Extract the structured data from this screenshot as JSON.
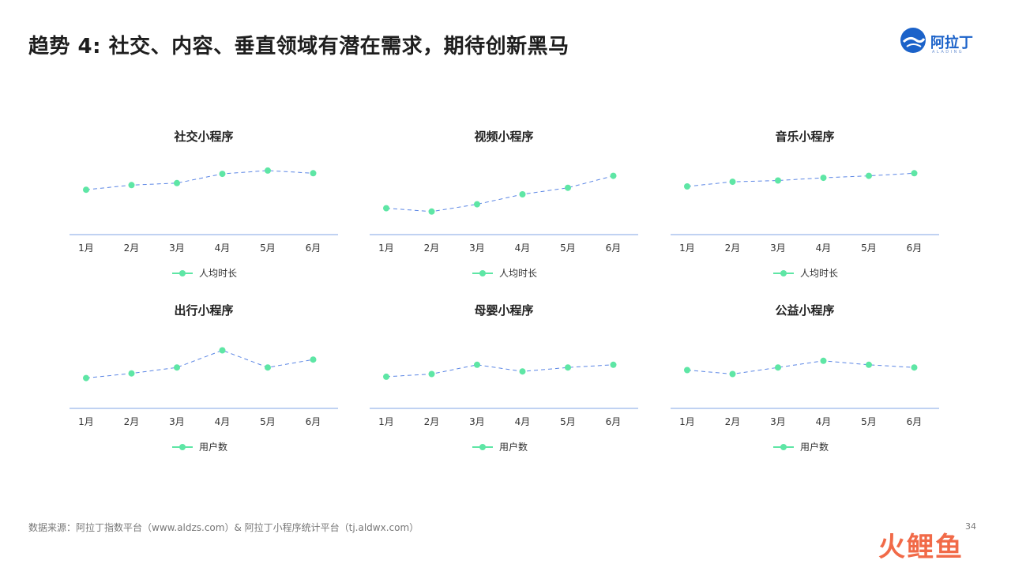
{
  "header": {
    "title": "趋势 4: 社交、内容、垂直领域有潜在需求，期待创新黑马",
    "logo_text": "阿拉丁",
    "logo_sub": "ALADING"
  },
  "footer": {
    "source": "数据来源：阿拉丁指数平台（www.aldzs.com）& 阿拉丁小程序统计平台（tj.aldwx.com）",
    "page_number": "34",
    "watermark": "火鲤鱼"
  },
  "colors": {
    "line": "#5b86e5",
    "marker": "#5ee6a5",
    "axis": "#9ab6ea",
    "text": "#333333"
  },
  "chart_data": [
    {
      "type": "line",
      "title": "社交小程序",
      "categories": [
        "1月",
        "2月",
        "3月",
        "4月",
        "5月",
        "6月"
      ],
      "series": [
        {
          "name": "人均时长",
          "values": [
            68,
            75,
            78,
            92,
            97,
            93
          ]
        }
      ],
      "ylim": [
        0,
        140
      ],
      "grid": false,
      "legend": "bottom-center"
    },
    {
      "type": "line",
      "title": "视频小程序",
      "categories": [
        "1月",
        "2月",
        "3月",
        "4月",
        "5月",
        "6月"
      ],
      "series": [
        {
          "name": "人均时长",
          "values": [
            40,
            35,
            46,
            61,
            71,
            89
          ]
        }
      ],
      "ylim": [
        0,
        140
      ],
      "grid": false,
      "legend": "bottom-center"
    },
    {
      "type": "line",
      "title": "音乐小程序",
      "categories": [
        "1月",
        "2月",
        "3月",
        "4月",
        "5月",
        "6月"
      ],
      "series": [
        {
          "name": "人均时长",
          "values": [
            73,
            80,
            82,
            86,
            89,
            93
          ]
        }
      ],
      "ylim": [
        0,
        140
      ],
      "grid": false,
      "legend": "bottom-center"
    },
    {
      "type": "line",
      "title": "出行小程序",
      "categories": [
        "1月",
        "2月",
        "3月",
        "4月",
        "5月",
        "6月"
      ],
      "series": [
        {
          "name": "用户数",
          "values": [
            46,
            53,
            62,
            88,
            62,
            74
          ]
        }
      ],
      "ylim": [
        0,
        140
      ],
      "grid": false,
      "legend": "bottom-center"
    },
    {
      "type": "line",
      "title": "母婴小程序",
      "categories": [
        "1月",
        "2月",
        "3月",
        "4月",
        "5月",
        "6月"
      ],
      "series": [
        {
          "name": "用户数",
          "values": [
            48,
            52,
            66,
            56,
            62,
            66
          ]
        }
      ],
      "ylim": [
        0,
        140
      ],
      "grid": false,
      "legend": "bottom-center"
    },
    {
      "type": "line",
      "title": "公益小程序",
      "categories": [
        "1月",
        "2月",
        "3月",
        "4月",
        "5月",
        "6月"
      ],
      "series": [
        {
          "name": "用户数",
          "values": [
            58,
            52,
            62,
            72,
            66,
            62
          ]
        }
      ],
      "ylim": [
        0,
        140
      ],
      "grid": false,
      "legend": "bottom-center"
    }
  ]
}
